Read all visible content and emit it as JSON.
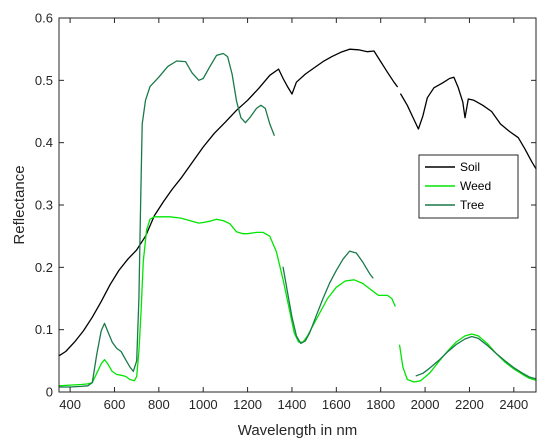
{
  "chart_data": {
    "type": "line",
    "title": "",
    "xlabel": "Wavelength in nm",
    "ylabel": "Reflectance",
    "xlim": [
      350,
      2500
    ],
    "ylim": [
      0,
      0.6
    ],
    "xticks": [
      400,
      600,
      800,
      1000,
      1200,
      1400,
      1600,
      1800,
      2000,
      2200,
      2400
    ],
    "yticks": [
      0,
      0.1,
      0.2,
      0.3,
      0.4,
      0.5,
      0.6
    ],
    "grid": false,
    "legend_position": "right",
    "series": [
      {
        "name": "Soil",
        "color": "#000000",
        "segments": [
          [
            [
              350,
              0.058
            ],
            [
              380,
              0.065
            ],
            [
              420,
              0.08
            ],
            [
              460,
              0.098
            ],
            [
              500,
              0.12
            ],
            [
              540,
              0.145
            ],
            [
              580,
              0.172
            ],
            [
              620,
              0.195
            ],
            [
              660,
              0.213
            ],
            [
              700,
              0.228
            ],
            [
              740,
              0.25
            ],
            [
              780,
              0.283
            ],
            [
              820,
              0.305
            ],
            [
              860,
              0.325
            ],
            [
              900,
              0.343
            ],
            [
              950,
              0.368
            ],
            [
              1000,
              0.393
            ],
            [
              1050,
              0.415
            ],
            [
              1100,
              0.433
            ],
            [
              1150,
              0.452
            ],
            [
              1200,
              0.468
            ],
            [
              1250,
              0.487
            ],
            [
              1300,
              0.508
            ],
            [
              1340,
              0.518
            ],
            [
              1360,
              0.503
            ],
            [
              1380,
              0.49
            ],
            [
              1400,
              0.478
            ],
            [
              1420,
              0.497
            ],
            [
              1460,
              0.51
            ],
            [
              1500,
              0.52
            ],
            [
              1540,
              0.53
            ],
            [
              1580,
              0.538
            ],
            [
              1620,
              0.545
            ],
            [
              1660,
              0.55
            ],
            [
              1700,
              0.549
            ],
            [
              1740,
              0.546
            ],
            [
              1770,
              0.547
            ],
            [
              1800,
              0.53
            ],
            [
              1830,
              0.513
            ],
            [
              1860,
              0.497
            ],
            [
              1875,
              0.49
            ]
          ],
          [
            [
              1890,
              0.478
            ],
            [
              1920,
              0.46
            ],
            [
              1950,
              0.437
            ],
            [
              1970,
              0.422
            ],
            [
              1990,
              0.443
            ],
            [
              2010,
              0.472
            ],
            [
              2040,
              0.488
            ],
            [
              2080,
              0.496
            ],
            [
              2110,
              0.503
            ],
            [
              2130,
              0.505
            ],
            [
              2150,
              0.488
            ],
            [
              2170,
              0.465
            ],
            [
              2180,
              0.44
            ],
            [
              2195,
              0.47
            ],
            [
              2220,
              0.468
            ],
            [
              2260,
              0.46
            ],
            [
              2300,
              0.45
            ],
            [
              2340,
              0.43
            ],
            [
              2380,
              0.418
            ],
            [
              2420,
              0.408
            ],
            [
              2450,
              0.39
            ],
            [
              2480,
              0.37
            ],
            [
              2500,
              0.358
            ]
          ]
        ]
      },
      {
        "name": "Weed",
        "color": "#00e600",
        "segments": [
          [
            [
              350,
              0.01
            ],
            [
              400,
              0.011
            ],
            [
              450,
              0.012
            ],
            [
              480,
              0.013
            ],
            [
              500,
              0.015
            ],
            [
              520,
              0.03
            ],
            [
              540,
              0.045
            ],
            [
              555,
              0.052
            ],
            [
              570,
              0.045
            ],
            [
              590,
              0.033
            ],
            [
              610,
              0.028
            ],
            [
              630,
              0.027
            ],
            [
              650,
              0.025
            ],
            [
              670,
              0.02
            ],
            [
              690,
              0.018
            ],
            [
              700,
              0.025
            ],
            [
              710,
              0.065
            ],
            [
              720,
              0.13
            ],
            [
              730,
              0.21
            ],
            [
              745,
              0.26
            ],
            [
              760,
              0.277
            ],
            [
              780,
              0.281
            ],
            [
              800,
              0.281
            ],
            [
              850,
              0.281
            ],
            [
              900,
              0.279
            ],
            [
              950,
              0.274
            ],
            [
              980,
              0.271
            ],
            [
              1000,
              0.272
            ],
            [
              1030,
              0.274
            ],
            [
              1060,
              0.277
            ],
            [
              1090,
              0.275
            ],
            [
              1120,
              0.27
            ],
            [
              1150,
              0.257
            ],
            [
              1180,
              0.254
            ],
            [
              1200,
              0.254
            ],
            [
              1240,
              0.256
            ],
            [
              1270,
              0.256
            ],
            [
              1300,
              0.25
            ],
            [
              1330,
              0.225
            ],
            [
              1360,
              0.18
            ],
            [
              1390,
              0.13
            ],
            [
              1410,
              0.095
            ],
            [
              1430,
              0.08
            ],
            [
              1450,
              0.08
            ],
            [
              1470,
              0.09
            ],
            [
              1500,
              0.11
            ],
            [
              1530,
              0.13
            ],
            [
              1560,
              0.15
            ],
            [
              1600,
              0.168
            ],
            [
              1640,
              0.178
            ],
            [
              1680,
              0.18
            ],
            [
              1720,
              0.174
            ],
            [
              1760,
              0.163
            ],
            [
              1790,
              0.155
            ],
            [
              1830,
              0.155
            ],
            [
              1850,
              0.15
            ],
            [
              1865,
              0.138
            ]
          ],
          [
            [
              1885,
              0.075
            ],
            [
              1900,
              0.04
            ],
            [
              1920,
              0.02
            ],
            [
              1950,
              0.016
            ],
            [
              1980,
              0.018
            ],
            [
              2020,
              0.03
            ],
            [
              2060,
              0.048
            ],
            [
              2100,
              0.065
            ],
            [
              2140,
              0.08
            ],
            [
              2180,
              0.09
            ],
            [
              2210,
              0.093
            ],
            [
              2240,
              0.09
            ],
            [
              2280,
              0.078
            ],
            [
              2320,
              0.062
            ],
            [
              2360,
              0.048
            ],
            [
              2400,
              0.037
            ],
            [
              2440,
              0.028
            ],
            [
              2470,
              0.022
            ],
            [
              2500,
              0.019
            ]
          ]
        ]
      },
      {
        "name": "Tree",
        "color": "#1a7a4a",
        "segments": [
          [
            [
              350,
              0.008
            ],
            [
              400,
              0.008
            ],
            [
              450,
              0.009
            ],
            [
              480,
              0.01
            ],
            [
              500,
              0.015
            ],
            [
              520,
              0.06
            ],
            [
              540,
              0.098
            ],
            [
              555,
              0.11
            ],
            [
              570,
              0.097
            ],
            [
              590,
              0.08
            ],
            [
              610,
              0.07
            ],
            [
              630,
              0.065
            ],
            [
              650,
              0.052
            ],
            [
              670,
              0.04
            ],
            [
              685,
              0.033
            ],
            [
              700,
              0.05
            ],
            [
              710,
              0.15
            ],
            [
              718,
              0.3
            ],
            [
              725,
              0.43
            ],
            [
              740,
              0.468
            ],
            [
              760,
              0.49
            ],
            [
              800,
              0.505
            ],
            [
              840,
              0.522
            ],
            [
              880,
              0.531
            ],
            [
              920,
              0.53
            ],
            [
              950,
              0.512
            ],
            [
              980,
              0.5
            ],
            [
              1000,
              0.503
            ],
            [
              1030,
              0.522
            ],
            [
              1060,
              0.54
            ],
            [
              1090,
              0.543
            ],
            [
              1110,
              0.538
            ],
            [
              1130,
              0.51
            ],
            [
              1150,
              0.467
            ],
            [
              1170,
              0.44
            ],
            [
              1190,
              0.432
            ],
            [
              1210,
              0.44
            ],
            [
              1240,
              0.455
            ],
            [
              1260,
              0.46
            ],
            [
              1280,
              0.455
            ],
            [
              1300,
              0.43
            ],
            [
              1320,
              0.412
            ]
          ],
          [
            [
              1360,
              0.2
            ],
            [
              1380,
              0.16
            ],
            [
              1400,
              0.12
            ],
            [
              1420,
              0.09
            ],
            [
              1440,
              0.078
            ],
            [
              1460,
              0.082
            ],
            [
              1480,
              0.095
            ],
            [
              1510,
              0.123
            ],
            [
              1540,
              0.15
            ],
            [
              1570,
              0.175
            ],
            [
              1600,
              0.195
            ],
            [
              1630,
              0.213
            ],
            [
              1660,
              0.226
            ],
            [
              1690,
              0.223
            ],
            [
              1720,
              0.208
            ],
            [
              1750,
              0.19
            ],
            [
              1765,
              0.183
            ]
          ],
          [
            [
              1960,
              0.026
            ],
            [
              1990,
              0.03
            ],
            [
              2020,
              0.038
            ],
            [
              2060,
              0.05
            ],
            [
              2100,
              0.064
            ],
            [
              2140,
              0.076
            ],
            [
              2180,
              0.085
            ],
            [
              2210,
              0.089
            ],
            [
              2240,
              0.086
            ],
            [
              2280,
              0.075
            ],
            [
              2320,
              0.062
            ],
            [
              2360,
              0.05
            ],
            [
              2400,
              0.039
            ],
            [
              2440,
              0.03
            ],
            [
              2470,
              0.024
            ],
            [
              2500,
              0.021
            ]
          ]
        ]
      }
    ]
  }
}
